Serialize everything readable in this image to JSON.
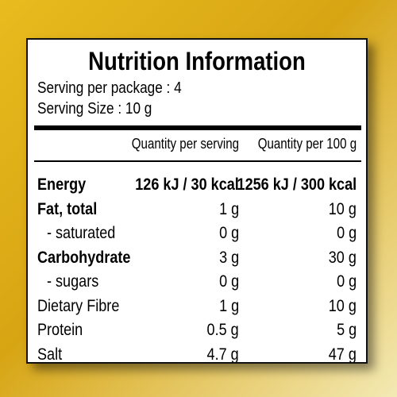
{
  "panel": {
    "title": "Nutrition Information",
    "servings_per_package": "Serving per package : 4",
    "serving_size": "Serving Size : 10 g"
  },
  "table": {
    "headers": {
      "per_serving": "Quantity per serving",
      "per_100g": "Quantity per 100 g"
    },
    "rows": [
      {
        "name": "Energy",
        "per_serving": "126 kJ / 30 kcal",
        "per_100g": "1256 kJ / 300 kcal"
      },
      {
        "name": "Fat, total",
        "per_serving": "1 g",
        "per_100g": "10 g"
      },
      {
        "name": "- saturated",
        "per_serving": "0 g",
        "per_100g": "0 g"
      },
      {
        "name": "Carbohydrate",
        "per_serving": "3 g",
        "per_100g": "30 g"
      },
      {
        "name": "- sugars",
        "per_serving": "0 g",
        "per_100g": "0 g"
      },
      {
        "name": "Dietary Fibre",
        "per_serving": "1 g",
        "per_100g": "10 g"
      },
      {
        "name": "Protein",
        "per_serving": "0.5 g",
        "per_100g": "5 g"
      },
      {
        "name": "Salt",
        "per_serving": "4.7 g",
        "per_100g": "47 g"
      }
    ]
  },
  "colors": {
    "background": "#d9a916",
    "panel": "#ffffff",
    "text": "#000000"
  }
}
